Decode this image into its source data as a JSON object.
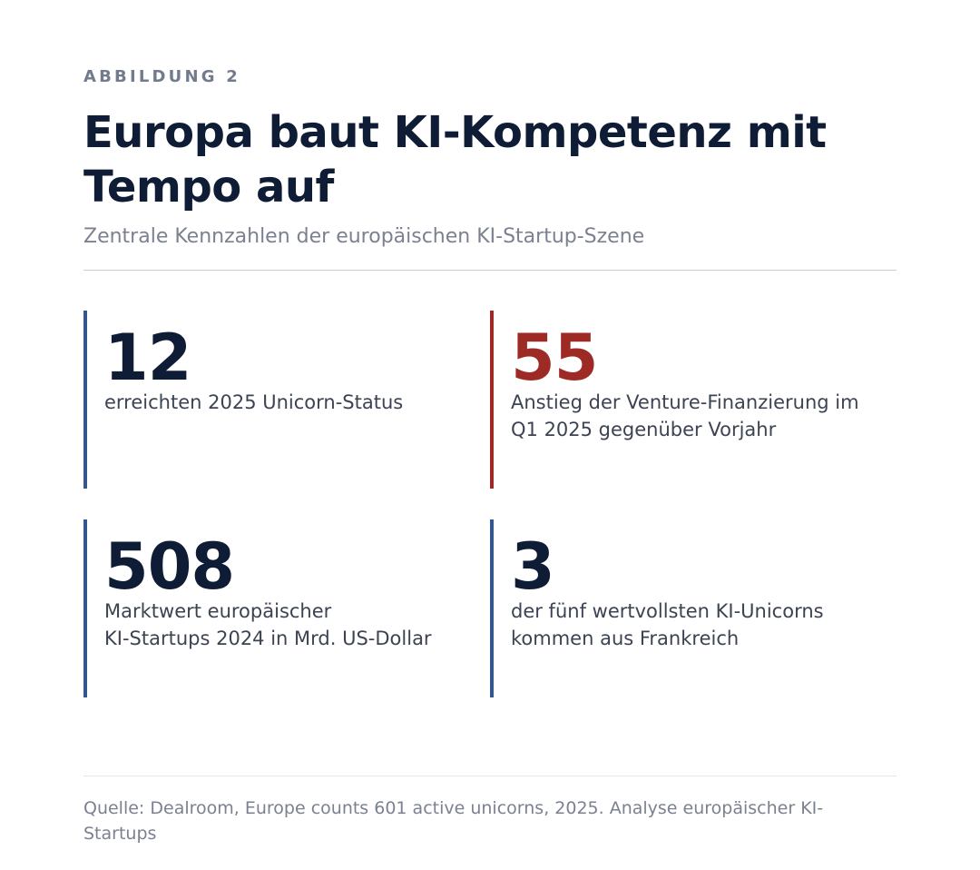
{
  "figure_label": "ABBILDUNG 2",
  "title": "Europa baut KI-Kompetenz mit Tempo auf",
  "subtitle": "Zentrale Kennzahlen der europäischen KI-Startup-Szene",
  "colors": {
    "primary": "#0f1c36",
    "accent": "#9e2a26",
    "bar_blue": "#33578d",
    "muted": "#7b8190"
  },
  "stats": [
    {
      "value": "12",
      "description": "erreichten 2025 Unicorn-Status"
    },
    {
      "value": "55",
      "description": "Anstieg der Venture-Finanzierung im\nQ1 2025 gegenüber Vorjahr"
    },
    {
      "value": "508",
      "description": "Marktwert europäischer\nKI-Startups 2024 in Mrd. US-Dollar"
    },
    {
      "value": "3",
      "description": "der fünf wertvollsten KI-Unicorns\nkommen aus Frankreich"
    }
  ],
  "source": "Quelle: Dealroom, Europe counts 601 active unicorns, 2025. Analyse europäischer KI-Startups"
}
